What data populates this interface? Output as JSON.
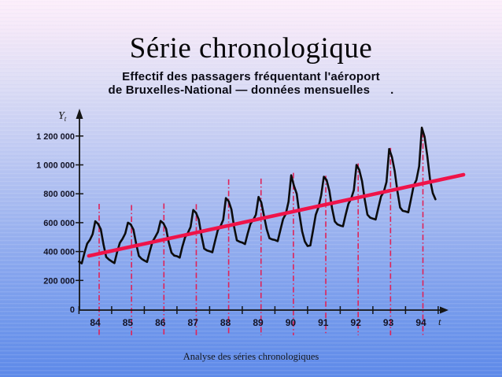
{
  "slide": {
    "title": "Série chronologique",
    "subtitle_line1": "Effectif des passagers fréquentant l'aéroport",
    "subtitle_line2": "de Bruxelles-National — données mensuelles",
    "subtitle_dot": ".",
    "footer": "Analyse des séries chronologiques"
  },
  "colors": {
    "background_top": "#fdeffb",
    "background_bottom": "#5d89e9",
    "curve": "#0c0c0c",
    "trend_line": "#ef1349",
    "peak_marker": "#e02257",
    "axis": "#151515",
    "tick_label": "#131325"
  },
  "chart_data": {
    "type": "line",
    "title": "Effectif des passagers fréquentant l'aéroport de Bruxelles-National — données mensuelles",
    "xlabel": "t",
    "ylabel": "Y",
    "ylabel_subscript": "t",
    "x_start": "1984-01",
    "x_end": "1994-12",
    "x_tick_labels": [
      "84",
      "85",
      "86",
      "87",
      "88",
      "89",
      "90",
      "91",
      "92",
      "93",
      "94"
    ],
    "y_tick_values": [
      0,
      200000,
      400000,
      600000,
      800000,
      1000000,
      1200000
    ],
    "y_tick_labels": [
      "0",
      "200 000",
      "400 000",
      "600 000",
      "800 000",
      "1 000 000",
      "1 200 000"
    ],
    "ylim": [
      0,
      1300000
    ],
    "grid": false,
    "legend": false,
    "series": [
      {
        "name": "passagers-mensuels",
        "color": "#0c0c0c",
        "values": [
          330000,
          318000,
          390000,
          455000,
          480000,
          520000,
          610000,
          592000,
          555000,
          450000,
          362000,
          345000,
          332000,
          320000,
          395000,
          460000,
          488000,
          525000,
          600000,
          588000,
          552000,
          455000,
          370000,
          350000,
          338000,
          328000,
          400000,
          468000,
          500000,
          535000,
          612000,
          596000,
          558000,
          462000,
          392000,
          372000,
          368000,
          358000,
          435000,
          500000,
          528000,
          570000,
          688000,
          668000,
          622000,
          512000,
          420000,
          408000,
          402000,
          395000,
          472000,
          548000,
          575000,
          620000,
          770000,
          748000,
          692000,
          572000,
          478000,
          468000,
          462000,
          452000,
          525000,
          592000,
          618000,
          655000,
          778000,
          740000,
          645000,
          555000,
          492000,
          484000,
          480000,
          472000,
          548000,
          625000,
          660000,
          745000,
          928000,
          855000,
          800000,
          660000,
          540000,
          470000,
          438000,
          442000,
          545000,
          655000,
          705000,
          790000,
          918000,
          895000,
          820000,
          700000,
          608000,
          588000,
          580000,
          575000,
          655000,
          730000,
          765000,
          825000,
          1000000,
          965000,
          888000,
          762000,
          655000,
          635000,
          628000,
          622000,
          702000,
          782000,
          812000,
          882000,
          1110000,
          1055000,
          958000,
          820000,
          705000,
          682000,
          678000,
          672000,
          762000,
          858000,
          895000,
          990000,
          1258000,
          1195000,
          1060000,
          900000,
          805000,
          762000
        ]
      }
    ],
    "trend_line": {
      "name": "tendance-lineaire",
      "color": "#ef1349",
      "start_month_index": 3.6,
      "start_value": 370000,
      "end_month_index": 141.3,
      "end_value": 932000
    },
    "peak_markers": {
      "name": "pics-annuels",
      "color": "#e02257",
      "style": "dash-dot",
      "top_values": [
        730000,
        722000,
        733000,
        728000,
        900000,
        905000,
        945000,
        925000,
        1010000,
        1118000,
        1228000
      ]
    }
  }
}
